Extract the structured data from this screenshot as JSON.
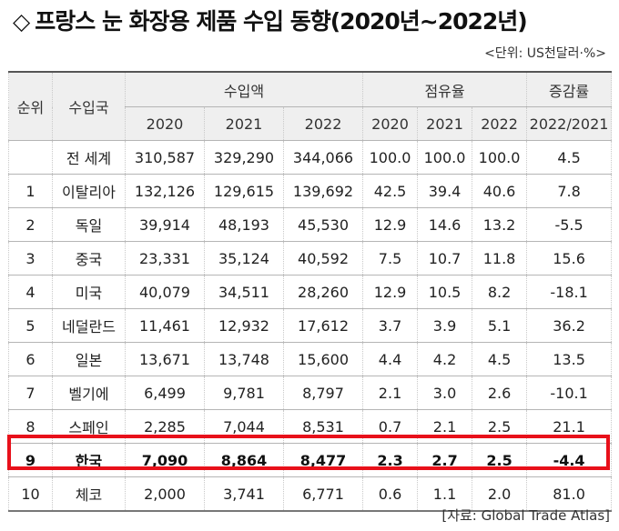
{
  "title": "프랑스 눈 화장용 제품 수입 동향(2020년~2022년)",
  "title_marker": "◇",
  "unit": "<단위: US천달러·%>",
  "source": "[자료: Global Trade Atlas]",
  "highlight_color": "#e8101a",
  "table": {
    "headers": {
      "rank": "순위",
      "country": "수입국",
      "import_amount": "수입액",
      "share": "점유율",
      "growth": "증감률",
      "years": [
        "2020",
        "2021",
        "2022"
      ],
      "growth_period": "2022/2021"
    },
    "rows": [
      {
        "rank": "",
        "country": "전 세계",
        "amounts": [
          "310,587",
          "329,290",
          "344,066"
        ],
        "shares": [
          "100.0",
          "100.0",
          "100.0"
        ],
        "growth": "4.5"
      },
      {
        "rank": "1",
        "country": "이탈리아",
        "amounts": [
          "132,126",
          "129,615",
          "139,692"
        ],
        "shares": [
          "42.5",
          "39.4",
          "40.6"
        ],
        "growth": "7.8"
      },
      {
        "rank": "2",
        "country": "독일",
        "amounts": [
          "39,914",
          "48,193",
          "45,530"
        ],
        "shares": [
          "12.9",
          "14.6",
          "13.2"
        ],
        "growth": "-5.5"
      },
      {
        "rank": "3",
        "country": "중국",
        "amounts": [
          "23,331",
          "35,124",
          "40,592"
        ],
        "shares": [
          "7.5",
          "10.7",
          "11.8"
        ],
        "growth": "15.6"
      },
      {
        "rank": "4",
        "country": "미국",
        "amounts": [
          "40,079",
          "34,511",
          "28,260"
        ],
        "shares": [
          "12.9",
          "10.5",
          "8.2"
        ],
        "growth": "-18.1"
      },
      {
        "rank": "5",
        "country": "네덜란드",
        "amounts": [
          "11,461",
          "12,932",
          "17,612"
        ],
        "shares": [
          "3.7",
          "3.9",
          "5.1"
        ],
        "growth": "36.2"
      },
      {
        "rank": "6",
        "country": "일본",
        "amounts": [
          "13,671",
          "13,748",
          "15,600"
        ],
        "shares": [
          "4.4",
          "4.2",
          "4.5"
        ],
        "growth": "13.5"
      },
      {
        "rank": "7",
        "country": "벨기에",
        "amounts": [
          "6,499",
          "9,781",
          "8,797"
        ],
        "shares": [
          "2.1",
          "3.0",
          "2.6"
        ],
        "growth": "-10.1"
      },
      {
        "rank": "8",
        "country": "스페인",
        "amounts": [
          "2,285",
          "7,044",
          "8,531"
        ],
        "shares": [
          "0.7",
          "2.1",
          "2.5"
        ],
        "growth": "21.1"
      },
      {
        "rank": "9",
        "country": "한국",
        "amounts": [
          "7,090",
          "8,864",
          "8,477"
        ],
        "shares": [
          "2.3",
          "2.7",
          "2.5"
        ],
        "growth": "-4.4",
        "highlighted": true
      },
      {
        "rank": "10",
        "country": "체코",
        "amounts": [
          "2,000",
          "3,741",
          "6,771"
        ],
        "shares": [
          "0.6",
          "1.1",
          "2.0"
        ],
        "growth": "81.0"
      }
    ]
  }
}
